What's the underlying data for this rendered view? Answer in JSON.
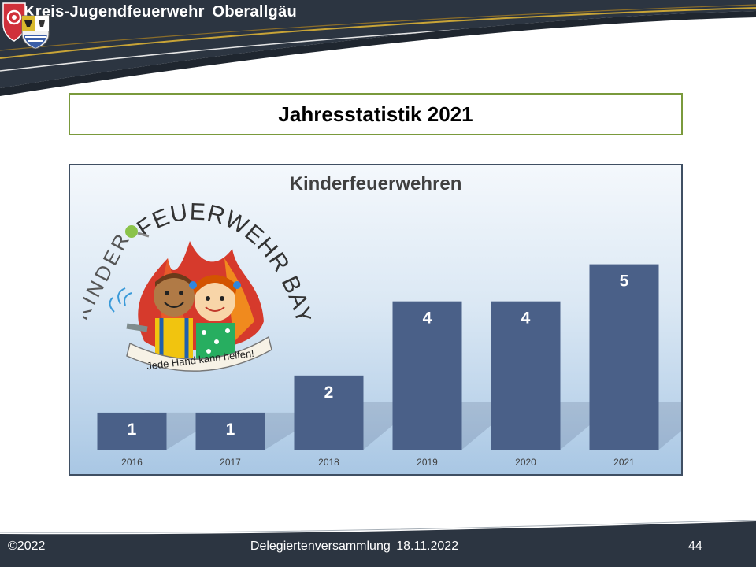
{
  "header": {
    "organization": "Kreis-Jugendfeuerwehr  Oberallgäu"
  },
  "slide": {
    "title": "Jahresstatistik 2021"
  },
  "chart_data": {
    "type": "bar",
    "title": "Kinderfeuerwehren",
    "categories": [
      "2016",
      "2017",
      "2018",
      "2019",
      "2020",
      "2021"
    ],
    "values": [
      1,
      1,
      2,
      4,
      4,
      5
    ],
    "ylim": [
      0,
      5.5
    ],
    "data_labels": true,
    "bar_color": "#4a6088",
    "legend": "none",
    "grid": false
  },
  "logo": {
    "arc_text": "FEUERWEHR BAYERN",
    "kinder_text": "KINDER",
    "banner_text": "Jede Hand kann helfen!"
  },
  "footer": {
    "copyright": "©2022",
    "event": "Delegiertenversammlung  18.11.2022",
    "page_number": "44"
  },
  "colors": {
    "dark": "#2a3340",
    "accent_green": "#7a9a3c",
    "bar": "#4a6088",
    "gold": "#c8a437"
  }
}
